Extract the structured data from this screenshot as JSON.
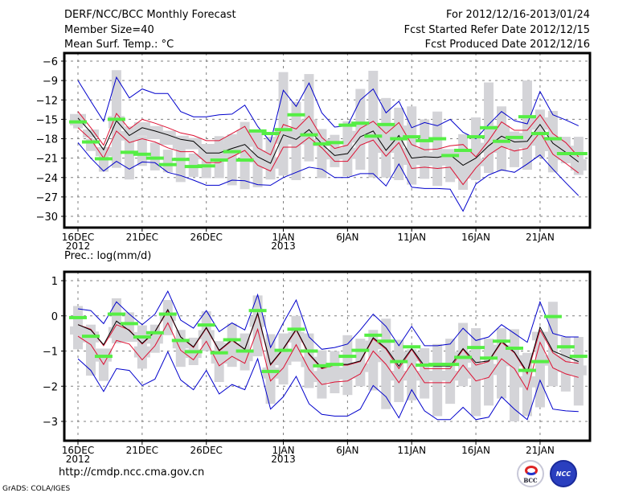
{
  "header": {
    "title": "DERF/NCC/BCC Monthly Forecast",
    "member_size": "Member Size=40",
    "variable": "Mean Surf. Temp.: °C",
    "period": "For 2012/12/16-2013/01/24",
    "start_date": "Fcst Started Refer Date 2012/12/15",
    "produced_date": "Fcst Produced Date 2012/12/16"
  },
  "footer": {
    "url": "http://cmdp.ncc.cma.gov.cn",
    "credit": "GrADS: COLA/IGES",
    "logo_bcc": "BCC",
    "logo_ncc": "NCC"
  },
  "colors": {
    "mean": "#000000",
    "spread": "#dd1133",
    "extreme": "#0000cc",
    "observed": "#55ee44",
    "box": "#d4d4d8",
    "grid": "#808080"
  },
  "chart_data": [
    {
      "type": "line",
      "title": "Mean Surf. Temp.: °C",
      "xlabel": "",
      "ylabel": "°C",
      "ylim": [
        -32,
        -4
      ],
      "yticks": [
        -6,
        -9,
        -12,
        -15,
        -18,
        -21,
        -24,
        -27,
        -30
      ],
      "xtick_labels": [
        {
          "day": 0,
          "label": "16DEC",
          "sub": "2012"
        },
        {
          "day": 5,
          "label": "21DEC",
          "sub": ""
        },
        {
          "day": 10,
          "label": "26DEC",
          "sub": ""
        },
        {
          "day": 16,
          "label": "1JAN",
          "sub": "2013"
        },
        {
          "day": 21,
          "label": "6JAN",
          "sub": ""
        },
        {
          "day": 26,
          "label": "11JAN",
          "sub": ""
        },
        {
          "day": 31,
          "label": "16JAN",
          "sub": ""
        },
        {
          "day": 36,
          "label": "21JAN",
          "sub": ""
        }
      ],
      "grid": true,
      "x_days": 40,
      "series": [
        {
          "name": "ensemble-max",
          "color": "#0000cc",
          "values": [
            -9.0,
            -12.2,
            -15.3,
            -8.5,
            -11.7,
            -10.3,
            -11.0,
            -11.0,
            -13.8,
            -14.6,
            -14.6,
            -14.3,
            -14.2,
            -12.8,
            -16.1,
            -18.5,
            -10.5,
            -13.0,
            -9.4,
            -14.0,
            -16.2,
            -16.0,
            -12.0,
            -10.3,
            -14.0,
            -12.2,
            -16.3,
            -15.5,
            -16.0,
            -15.0,
            -17.0,
            -18.0,
            -15.8,
            -13.8,
            -15.2,
            -15.7,
            -10.7,
            -14.3,
            -15.1,
            -16.0
          ]
        },
        {
          "name": "mean-plus-std",
          "color": "#dd1133",
          "values": [
            -13.8,
            -16.3,
            -19.0,
            -14.1,
            -16.5,
            -15.0,
            -15.6,
            -16.3,
            -17.1,
            -17.5,
            -18.3,
            -18.3,
            -17.2,
            -16.1,
            -19.4,
            -20.5,
            -15.8,
            -16.5,
            -14.5,
            -17.8,
            -19.5,
            -19.0,
            -16.4,
            -15.3,
            -17.2,
            -15.5,
            -18.9,
            -19.7,
            -19.6,
            -19.1,
            -18.9,
            -20.8,
            -18.3,
            -15.4,
            -16.7,
            -16.7,
            -14.3,
            -17.2,
            -18.6,
            -20.8
          ]
        },
        {
          "name": "ensemble-mean",
          "color": "#000000",
          "values": [
            -14.8,
            -17.0,
            -19.7,
            -15.2,
            -17.5,
            -16.3,
            -16.8,
            -17.4,
            -18.1,
            -18.4,
            -20.2,
            -20.2,
            -19.5,
            -18.9,
            -20.8,
            -21.8,
            -17.4,
            -18.1,
            -16.6,
            -18.8,
            -20.6,
            -20.3,
            -17.7,
            -16.8,
            -19.8,
            -17.5,
            -21.0,
            -20.8,
            -20.9,
            -20.5,
            -22.1,
            -21.0,
            -19.1,
            -17.6,
            -18.5,
            -18.4,
            -15.8,
            -18.7,
            -20.1,
            -21.6
          ]
        },
        {
          "name": "mean-minus-std",
          "color": "#dd1133",
          "values": [
            -16.3,
            -18.1,
            -21.0,
            -16.8,
            -18.6,
            -18.0,
            -18.5,
            -19.4,
            -20.0,
            -20.0,
            -21.7,
            -21.7,
            -20.8,
            -19.8,
            -22.1,
            -23.0,
            -19.3,
            -19.3,
            -17.8,
            -19.4,
            -21.5,
            -21.5,
            -19.0,
            -18.2,
            -20.7,
            -18.6,
            -22.6,
            -22.4,
            -22.6,
            -22.4,
            -25.1,
            -22.5,
            -20.5,
            -19.2,
            -19.9,
            -19.5,
            -17.0,
            -20.4,
            -21.8,
            -23.3
          ]
        },
        {
          "name": "ensemble-min",
          "color": "#0000cc",
          "values": [
            -18.6,
            -21.0,
            -23.0,
            -21.5,
            -22.7,
            -21.6,
            -21.7,
            -23.2,
            -23.7,
            -24.4,
            -25.2,
            -25.2,
            -24.4,
            -24.5,
            -25.1,
            -25.2,
            -24.0,
            -23.2,
            -22.4,
            -22.7,
            -24.0,
            -24.0,
            -23.4,
            -23.4,
            -25.3,
            -21.9,
            -25.5,
            -25.7,
            -25.7,
            -25.8,
            -29.2,
            -25.0,
            -23.6,
            -22.8,
            -23.2,
            -21.9,
            -20.5,
            -22.7,
            -24.8,
            -26.8
          ]
        },
        {
          "name": "observed",
          "color": "#55ee44",
          "values": [
            -15.4,
            -18.5,
            -21.1,
            -15.0,
            -20.1,
            -20.4,
            -21.0,
            -22.0,
            -21.2,
            -22.3,
            -22.2,
            -21.3,
            -20.0,
            -21.3,
            -16.8,
            -17.2,
            -16.6,
            -14.3,
            -17.4,
            -18.8,
            -18.6,
            -15.9,
            -15.6,
            -17.6,
            -15.8,
            -18.0,
            -17.7,
            -18.3,
            -18.0,
            -20.6,
            -19.8,
            -17.7,
            -16.3,
            -18.4,
            -17.8,
            -14.6,
            -17.2,
            -18.0,
            -20.3,
            -20.3
          ]
        },
        {
          "name": "box-outer-high",
          "color": "#d4d4d8",
          "values": [
            -14.6,
            -18.0,
            -19.6,
            -7.4,
            -16.1,
            -17.6,
            -18.6,
            -19.7,
            -18.4,
            -20.3,
            -19.2,
            -17.6,
            -17.3,
            -15.4,
            -16.6,
            -17.7,
            -7.7,
            -12.3,
            -8.0,
            -16.5,
            -17.4,
            -15.3,
            -10.3,
            -7.5,
            -11.7,
            -13.2,
            -13.0,
            -15.0,
            -13.8,
            -20.7,
            -17.3,
            -14.7,
            -9.3,
            -13.0,
            -16.9,
            -9.0,
            -13.5,
            -13.7,
            -17.7,
            -17.7
          ]
        },
        {
          "name": "box-outer-low",
          "color": "#d4d4d8",
          "values": [
            -16.4,
            -19.9,
            -23.1,
            -22.5,
            -24.3,
            -22.2,
            -22.9,
            -23.2,
            -24.7,
            -23.9,
            -24.1,
            -24.1,
            -25.2,
            -25.8,
            -25.5,
            -24.3,
            -23.7,
            -24.4,
            -21.5,
            -24.1,
            -22.4,
            -23.8,
            -22.8,
            -24.0,
            -24.0,
            -24.4,
            -25.1,
            -24.2,
            -25.3,
            -24.7,
            -25.9,
            -24.4,
            -23.3,
            -23.0,
            -22.4,
            -22.8,
            -20.9,
            -23.2,
            -21.8,
            -23.6
          ]
        }
      ]
    },
    {
      "type": "line",
      "title": "Prec.: log(mm/d)",
      "xlabel": "",
      "ylabel": "log(mm/d)",
      "ylim": [
        -3.4,
        1.25
      ],
      "yticks": [
        1,
        0,
        -1,
        -2,
        -3
      ],
      "xtick_labels": [
        {
          "day": 0,
          "label": "16DEC",
          "sub": "2012"
        },
        {
          "day": 5,
          "label": "21DEC",
          "sub": ""
        },
        {
          "day": 10,
          "label": "26DEC",
          "sub": ""
        },
        {
          "day": 16,
          "label": "1JAN",
          "sub": "2013"
        },
        {
          "day": 21,
          "label": "6JAN",
          "sub": ""
        },
        {
          "day": 26,
          "label": "11JAN",
          "sub": ""
        },
        {
          "day": 31,
          "label": "16JAN",
          "sub": ""
        },
        {
          "day": 36,
          "label": "21JAN",
          "sub": ""
        }
      ],
      "grid": true,
      "x_days": 40,
      "series": [
        {
          "name": "ensemble-max",
          "color": "#0000cc",
          "values": [
            0.2,
            0.15,
            -0.22,
            0.4,
            0.05,
            -0.25,
            0.05,
            0.7,
            -0.12,
            -0.35,
            0.15,
            -0.45,
            -0.2,
            -0.4,
            0.6,
            -0.9,
            -0.2,
            0.45,
            -0.6,
            -0.95,
            -0.9,
            -0.8,
            -0.4,
            0.05,
            -0.3,
            -0.85,
            -0.3,
            -0.85,
            -0.85,
            -0.8,
            -0.35,
            -0.7,
            -0.6,
            -0.25,
            -0.5,
            -0.75,
            0.4,
            -0.5,
            -0.6,
            -0.6
          ]
        },
        {
          "name": "mean-plus-std",
          "color": "#dd1133",
          "values": [
            -0.25,
            -0.38,
            -0.85,
            -0.25,
            -0.4,
            -0.8,
            -0.45,
            0.15,
            -0.6,
            -0.9,
            -0.35,
            -1.0,
            -0.7,
            -0.95,
            0.05,
            -1.4,
            -0.95,
            -0.4,
            -1.1,
            -1.5,
            -1.4,
            -1.4,
            -1.3,
            -0.65,
            -0.95,
            -1.5,
            -0.95,
            -1.5,
            -1.5,
            -1.5,
            -0.95,
            -1.4,
            -1.3,
            -0.75,
            -1.05,
            -1.65,
            -0.4,
            -1.05,
            -1.3,
            -1.35
          ]
        },
        {
          "name": "ensemble-mean",
          "color": "#000000",
          "values": [
            -0.25,
            -0.4,
            -0.82,
            -0.15,
            -0.42,
            -0.78,
            -0.45,
            0.18,
            -0.6,
            -0.88,
            -0.33,
            -0.98,
            -0.68,
            -0.95,
            0.08,
            -1.38,
            -0.93,
            -0.38,
            -1.08,
            -1.48,
            -1.38,
            -1.38,
            -1.28,
            -0.62,
            -0.92,
            -1.43,
            -0.93,
            -1.43,
            -1.43,
            -1.43,
            -0.93,
            -1.33,
            -1.28,
            -0.72,
            -1.03,
            -1.6,
            -0.32,
            -1.0,
            -1.15,
            -1.3
          ]
        },
        {
          "name": "mean-minus-std",
          "color": "#dd1133",
          "values": [
            -0.58,
            -0.82,
            -1.38,
            -0.7,
            -0.8,
            -1.25,
            -0.85,
            -0.2,
            -0.98,
            -1.25,
            -0.72,
            -1.42,
            -1.15,
            -1.35,
            -0.38,
            -1.85,
            -1.48,
            -0.82,
            -1.52,
            -1.95,
            -1.88,
            -1.85,
            -1.65,
            -1.0,
            -1.38,
            -1.9,
            -1.35,
            -1.9,
            -1.9,
            -1.9,
            -1.4,
            -1.85,
            -1.75,
            -1.22,
            -1.5,
            -2.1,
            -0.75,
            -1.48,
            -1.65,
            -1.75
          ]
        },
        {
          "name": "ensemble-min",
          "color": "#0000cc",
          "values": [
            -1.22,
            -1.55,
            -2.15,
            -1.5,
            -1.55,
            -1.98,
            -1.8,
            -1.02,
            -1.82,
            -2.1,
            -1.55,
            -2.22,
            -1.95,
            -2.1,
            -1.22,
            -2.65,
            -2.3,
            -1.72,
            -2.5,
            -2.8,
            -2.85,
            -2.85,
            -2.65,
            -1.98,
            -2.3,
            -2.9,
            -2.1,
            -2.7,
            -2.95,
            -2.95,
            -2.6,
            -2.95,
            -2.88,
            -2.3,
            -2.65,
            -2.95,
            -1.83,
            -2.65,
            -2.7,
            -2.72
          ]
        },
        {
          "name": "observed",
          "color": "#55ee44",
          "values": [
            -0.05,
            -0.58,
            -1.15,
            0.05,
            -0.22,
            -0.6,
            -0.48,
            0.05,
            -0.7,
            -1.02,
            -0.26,
            -1.05,
            -0.68,
            -1.0,
            0.15,
            -1.58,
            -0.98,
            -0.38,
            -1.0,
            -1.42,
            -1.38,
            -1.15,
            -0.98,
            -0.55,
            -0.72,
            -1.3,
            -0.88,
            -1.4,
            -1.38,
            -1.38,
            -1.18,
            -0.9,
            -1.2,
            -0.72,
            -0.92,
            -1.55,
            -1.3,
            -0.02,
            -0.88,
            -1.15
          ]
        },
        {
          "name": "box-outer-high",
          "color": "#d4d4d8",
          "values": [
            0.28,
            -0.25,
            -0.95,
            0.5,
            0.1,
            -0.27,
            -0.25,
            0.45,
            -0.4,
            -0.62,
            0.13,
            -0.72,
            -0.22,
            -0.5,
            0.58,
            -0.52,
            -0.5,
            0.0,
            -0.5,
            -0.98,
            -1.0,
            -0.55,
            -0.65,
            -0.4,
            -0.08,
            -0.68,
            -0.95,
            -0.92,
            -0.8,
            -0.65,
            -0.2,
            -0.35,
            -0.65,
            -0.35,
            -0.38,
            -1.05,
            -0.65,
            0.4,
            -0.6,
            -0.6
          ]
        },
        {
          "name": "box-outer-low",
          "color": "#d4d4d8",
          "values": [
            -0.95,
            -1.7,
            -1.85,
            -0.78,
            -0.5,
            -1.5,
            -1.05,
            -0.55,
            -1.45,
            -1.4,
            -1.0,
            -1.88,
            -1.45,
            -1.55,
            -1.15,
            -2.5,
            -1.95,
            -1.3,
            -2.05,
            -2.35,
            -2.2,
            -2.25,
            -2.0,
            -2.12,
            -2.65,
            -2.45,
            -2.4,
            -2.35,
            -2.85,
            -2.5,
            -2.0,
            -2.85,
            -2.55,
            -2.35,
            -3.0,
            -2.85,
            -2.6,
            -2.0,
            -2.15,
            -2.55
          ]
        }
      ]
    }
  ]
}
